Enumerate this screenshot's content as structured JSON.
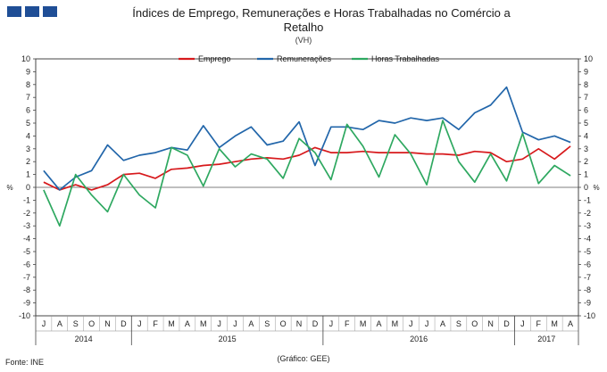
{
  "header": {
    "title_line1": "Índices de Emprego, Remunerações e Horas Trabalhadas no Comércio a",
    "title_line2": "Retalho",
    "subtitle": "(VH)"
  },
  "footer": {
    "source": "Fonte: INE",
    "credit": "(Gráfico: GEE)"
  },
  "chart_data": {
    "type": "line",
    "title": "Índices de Emprego, Remunerações e Horas Trabalhadas no Comércio a Retalho",
    "subtitle": "(VH)",
    "ylabel_left": "%",
    "ylabel_right": "%",
    "ylim": [
      -10,
      10
    ],
    "yticks": [
      -10,
      -9,
      -8,
      -7,
      -6,
      -5,
      -4,
      -3,
      -2,
      -1,
      0,
      1,
      2,
      3,
      4,
      5,
      6,
      7,
      8,
      9,
      10
    ],
    "grid": false,
    "legend_position": "top-center",
    "categories": [
      "J",
      "A",
      "S",
      "O",
      "N",
      "D",
      "J",
      "F",
      "M",
      "A",
      "M",
      "J",
      "J",
      "A",
      "S",
      "O",
      "N",
      "D",
      "J",
      "F",
      "M",
      "A",
      "M",
      "J",
      "J",
      "A",
      "S",
      "O",
      "N",
      "D",
      "J",
      "F",
      "M",
      "A"
    ],
    "years": [
      {
        "label": "2014",
        "start": 0,
        "end": 5
      },
      {
        "label": "2015",
        "start": 6,
        "end": 17
      },
      {
        "label": "2016",
        "start": 18,
        "end": 29
      },
      {
        "label": "2017",
        "start": 30,
        "end": 33
      }
    ],
    "series": [
      {
        "name": "Emprego",
        "color": "#d7191c",
        "values": [
          0.4,
          -0.2,
          0.2,
          -0.2,
          0.2,
          1.0,
          1.1,
          0.7,
          1.4,
          1.5,
          1.7,
          1.8,
          2.0,
          2.2,
          2.3,
          2.2,
          2.5,
          3.1,
          2.7,
          2.7,
          2.8,
          2.7,
          2.7,
          2.7,
          2.6,
          2.6,
          2.5,
          2.8,
          2.7,
          2.0,
          2.2,
          3.0,
          2.2,
          3.2
        ]
      },
      {
        "name": "Remunerações",
        "color": "#2266aa",
        "values": [
          1.3,
          -0.2,
          0.8,
          1.3,
          3.3,
          2.1,
          2.5,
          2.7,
          3.1,
          2.9,
          4.8,
          3.1,
          4.0,
          4.7,
          3.3,
          3.6,
          5.1,
          1.7,
          4.7,
          4.7,
          4.5,
          5.2,
          5.0,
          5.4,
          5.2,
          5.4,
          4.5,
          5.8,
          6.4,
          7.8,
          4.3,
          3.7,
          4.0,
          3.5
        ]
      },
      {
        "name": "Horas Trabalhadas",
        "color": "#2ea860",
        "values": [
          -0.2,
          -3.0,
          1.0,
          -0.6,
          -1.9,
          1.0,
          -0.6,
          -1.6,
          3.1,
          2.5,
          0.1,
          3.0,
          1.6,
          2.6,
          2.2,
          0.7,
          3.8,
          2.7,
          0.6,
          4.9,
          3.2,
          0.8,
          4.1,
          2.6,
          0.2,
          5.2,
          2.0,
          0.4,
          2.6,
          0.5,
          4.2,
          0.3,
          1.7,
          0.9
        ]
      }
    ]
  }
}
